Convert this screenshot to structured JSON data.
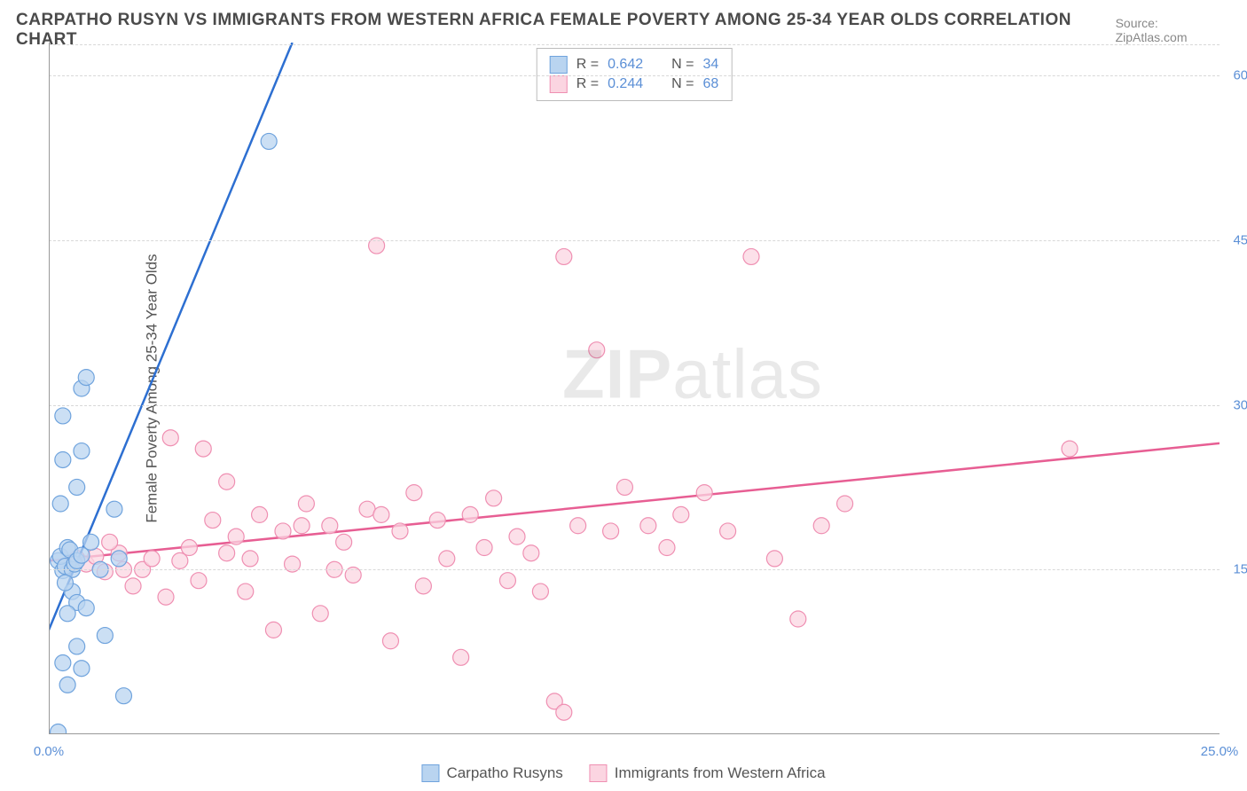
{
  "title": "CARPATHO RUSYN VS IMMIGRANTS FROM WESTERN AFRICA FEMALE POVERTY AMONG 25-34 YEAR OLDS CORRELATION CHART",
  "source": "Source: ZipAtlas.com",
  "watermark_a": "ZIP",
  "watermark_b": "atlas",
  "y_axis_label": "Female Poverty Among 25-34 Year Olds",
  "chart": {
    "type": "scatter",
    "xlim": [
      0,
      25
    ],
    "ylim": [
      0,
      63
    ],
    "x_ticks": [
      0,
      25
    ],
    "x_tick_labels": [
      "0.0%",
      "25.0%"
    ],
    "y_ticks": [
      15,
      30,
      45,
      60
    ],
    "y_tick_labels": [
      "15.0%",
      "30.0%",
      "45.0%",
      "60.0%"
    ],
    "grid_color": "#d8d8d8",
    "axis_color": "#999999",
    "background_color": "#ffffff",
    "marker_radius": 9,
    "marker_stroke_width": 1.2,
    "trend_line_width": 2.5,
    "series": [
      {
        "name": "Carpatho Rusyns",
        "color_fill": "#b9d4f0",
        "color_stroke": "#6fa3dd",
        "line_color": "#2d6fd1",
        "r_value": "0.642",
        "n_value": "34",
        "trend_p1": [
          0.0,
          9.5
        ],
        "trend_p2": [
          5.2,
          63.0
        ],
        "points": [
          [
            0.2,
            15.8
          ],
          [
            0.3,
            14.9
          ],
          [
            0.25,
            16.2
          ],
          [
            0.4,
            17.0
          ],
          [
            0.35,
            15.3
          ],
          [
            0.5,
            13.0
          ],
          [
            0.6,
            12.0
          ],
          [
            0.4,
            11.0
          ],
          [
            0.8,
            11.5
          ],
          [
            1.2,
            9.0
          ],
          [
            0.6,
            8.0
          ],
          [
            0.3,
            6.5
          ],
          [
            0.7,
            6.0
          ],
          [
            0.4,
            4.5
          ],
          [
            1.6,
            3.5
          ],
          [
            0.2,
            0.2
          ],
          [
            0.25,
            21.0
          ],
          [
            0.6,
            22.5
          ],
          [
            0.3,
            25.0
          ],
          [
            0.7,
            25.8
          ],
          [
            0.3,
            29.0
          ],
          [
            0.7,
            31.5
          ],
          [
            0.8,
            32.5
          ],
          [
            1.4,
            20.5
          ],
          [
            1.1,
            15.0
          ],
          [
            0.9,
            17.5
          ],
          [
            1.5,
            16.0
          ],
          [
            0.5,
            15.0
          ],
          [
            0.35,
            13.8
          ],
          [
            0.45,
            16.8
          ],
          [
            0.55,
            15.5
          ],
          [
            0.6,
            15.8
          ],
          [
            0.7,
            16.3
          ],
          [
            4.7,
            54.0
          ]
        ]
      },
      {
        "name": "Immigrants from Western Africa",
        "color_fill": "#fbd5e1",
        "color_stroke": "#ef8fb2",
        "line_color": "#e75e93",
        "r_value": "0.244",
        "n_value": "68",
        "trend_p1": [
          0.0,
          15.8
        ],
        "trend_p2": [
          25.0,
          26.5
        ],
        "points": [
          [
            0.6,
            16.0
          ],
          [
            0.8,
            15.5
          ],
          [
            1.0,
            16.2
          ],
          [
            1.2,
            14.8
          ],
          [
            1.5,
            16.5
          ],
          [
            1.8,
            13.5
          ],
          [
            2.0,
            15.0
          ],
          [
            2.2,
            16.0
          ],
          [
            2.5,
            12.5
          ],
          [
            2.8,
            15.8
          ],
          [
            3.0,
            17.0
          ],
          [
            3.2,
            14.0
          ],
          [
            3.5,
            19.5
          ],
          [
            3.8,
            16.5
          ],
          [
            4.0,
            18.0
          ],
          [
            4.2,
            13.0
          ],
          [
            4.5,
            20.0
          ],
          [
            4.8,
            9.5
          ],
          [
            5.0,
            18.5
          ],
          [
            5.2,
            15.5
          ],
          [
            5.5,
            21.0
          ],
          [
            5.8,
            11.0
          ],
          [
            6.0,
            19.0
          ],
          [
            6.3,
            17.5
          ],
          [
            6.5,
            14.5
          ],
          [
            6.8,
            20.5
          ],
          [
            7.0,
            44.5
          ],
          [
            7.3,
            8.5
          ],
          [
            7.5,
            18.5
          ],
          [
            7.8,
            22.0
          ],
          [
            8.0,
            13.5
          ],
          [
            8.3,
            19.5
          ],
          [
            8.5,
            16.0
          ],
          [
            8.8,
            7.0
          ],
          [
            9.0,
            20.0
          ],
          [
            9.3,
            17.0
          ],
          [
            9.5,
            21.5
          ],
          [
            9.8,
            14.0
          ],
          [
            10.0,
            18.0
          ],
          [
            10.3,
            16.5
          ],
          [
            10.5,
            13.0
          ],
          [
            10.8,
            3.0
          ],
          [
            11.0,
            2.0
          ],
          [
            11.0,
            43.5
          ],
          [
            11.3,
            19.0
          ],
          [
            11.7,
            35.0
          ],
          [
            12.0,
            18.5
          ],
          [
            12.3,
            22.5
          ],
          [
            12.8,
            19.0
          ],
          [
            13.2,
            17.0
          ],
          [
            13.5,
            20.0
          ],
          [
            14.0,
            22.0
          ],
          [
            14.5,
            18.5
          ],
          [
            15.0,
            43.5
          ],
          [
            15.5,
            16.0
          ],
          [
            16.0,
            10.5
          ],
          [
            16.5,
            19.0
          ],
          [
            17.0,
            21.0
          ],
          [
            2.6,
            27.0
          ],
          [
            3.3,
            26.0
          ],
          [
            1.3,
            17.5
          ],
          [
            1.6,
            15.0
          ],
          [
            4.3,
            16.0
          ],
          [
            5.4,
            19.0
          ],
          [
            6.1,
            15.0
          ],
          [
            7.1,
            20.0
          ],
          [
            21.8,
            26.0
          ],
          [
            3.8,
            23.0
          ]
        ]
      }
    ]
  },
  "legend_labels": {
    "r": "R =",
    "n": "N ="
  }
}
